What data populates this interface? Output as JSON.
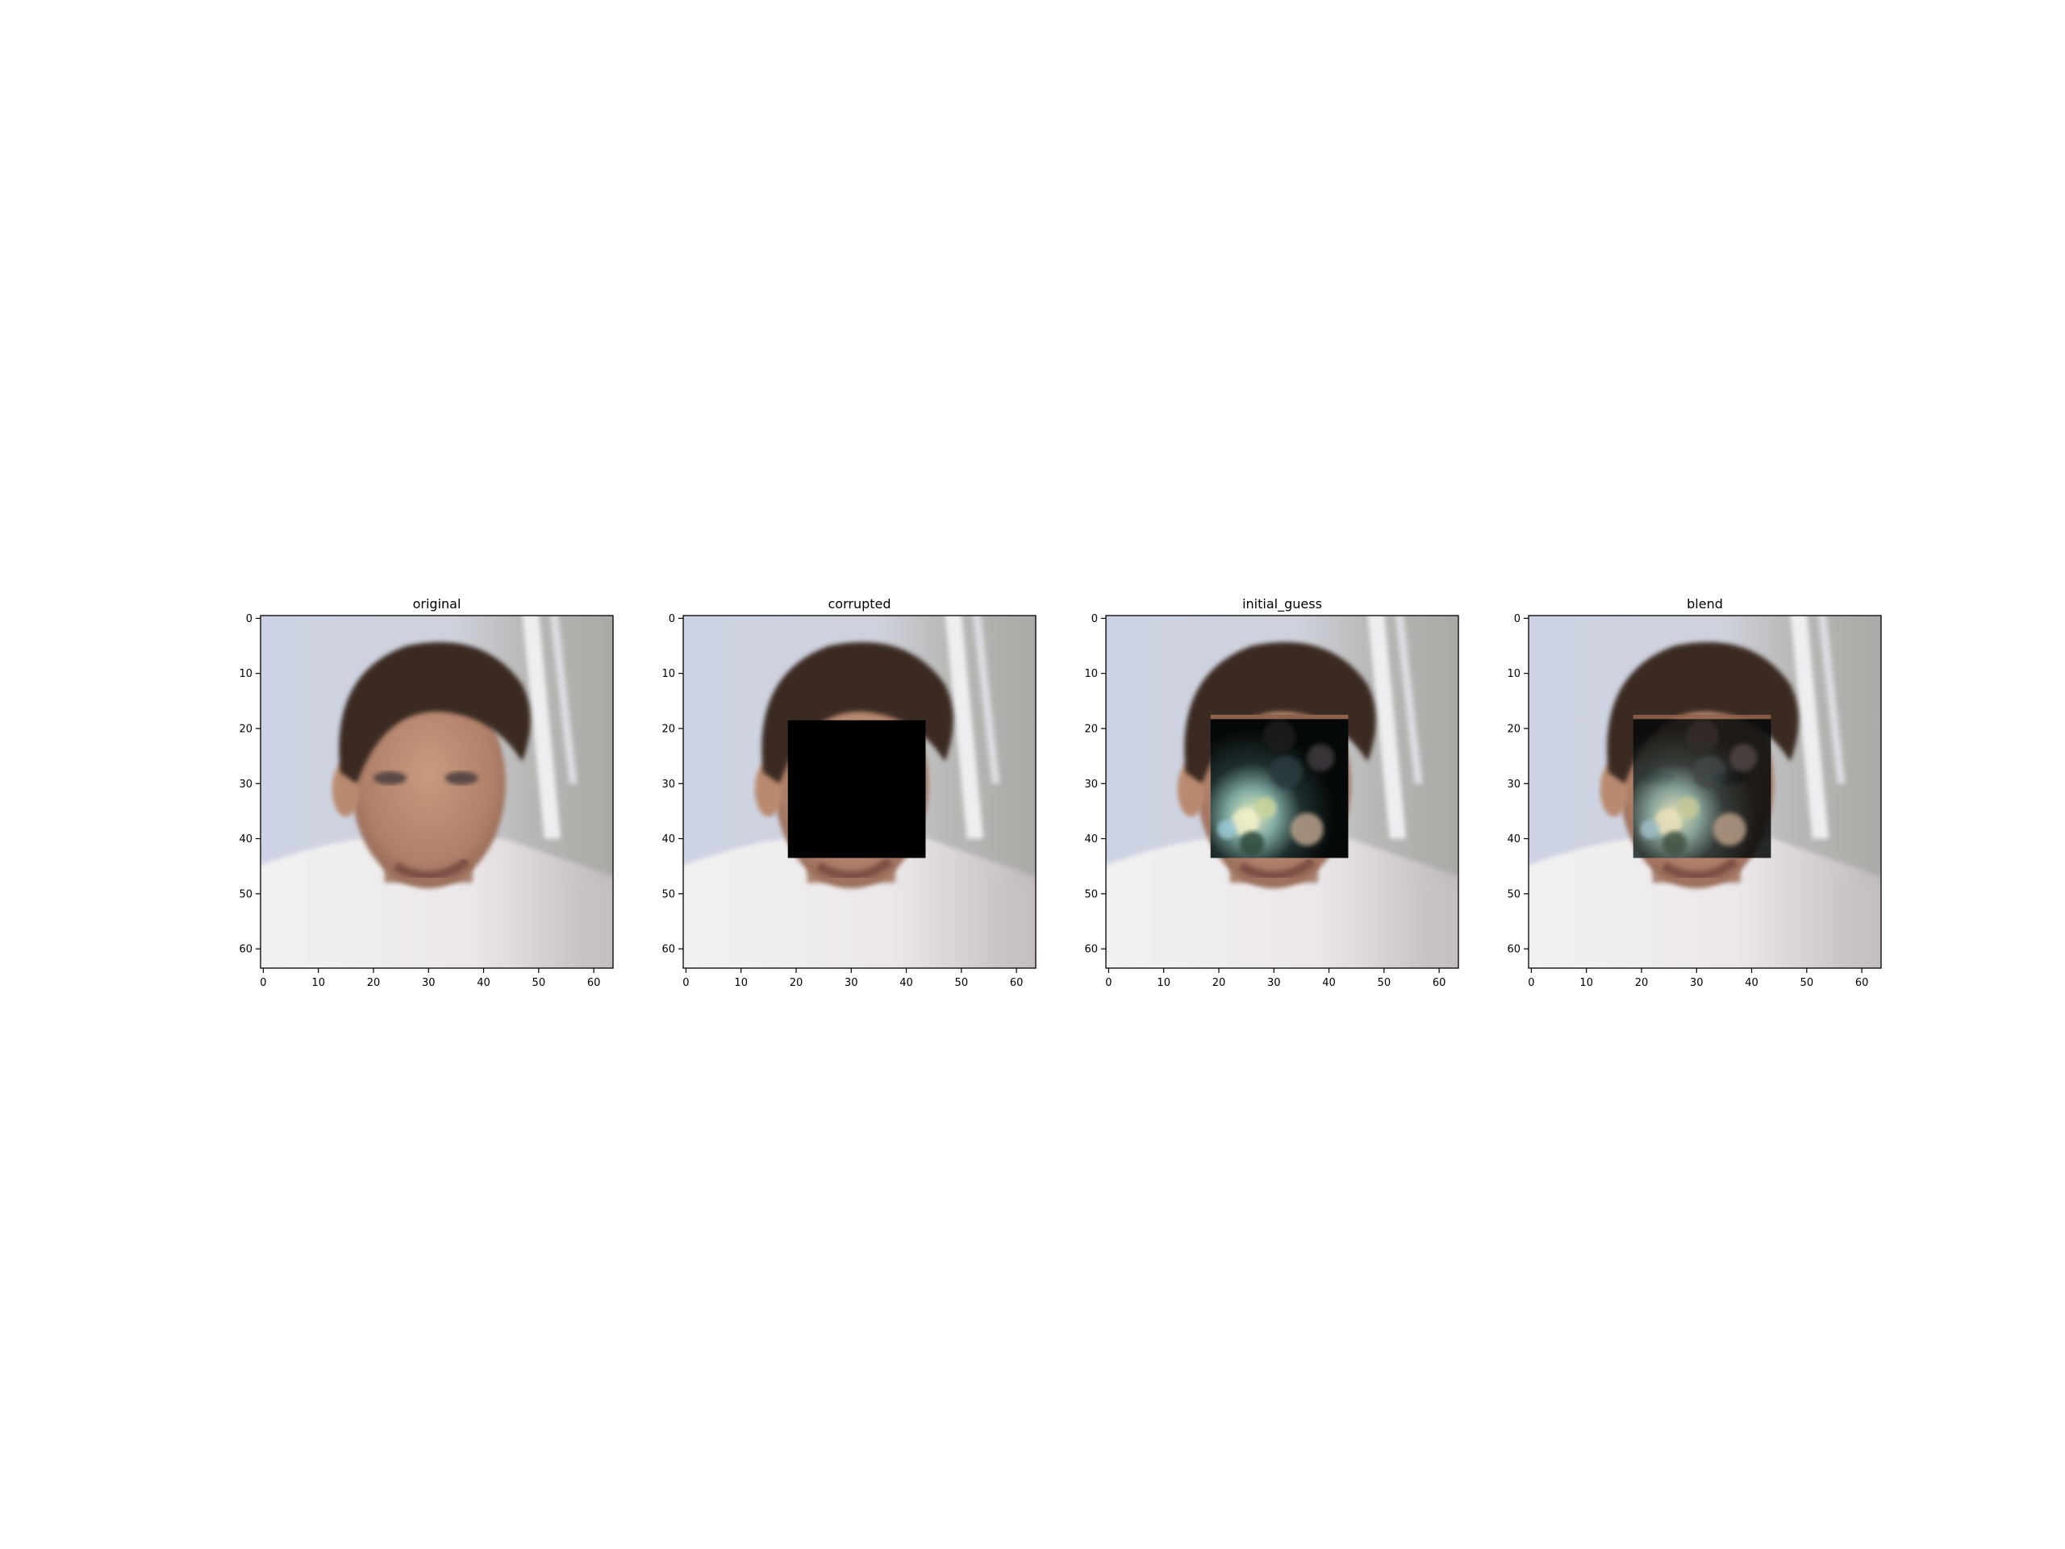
{
  "chart_data": [
    {
      "type": "image",
      "title": "original",
      "xlabel": "",
      "ylabel": "",
      "xlim": [
        0,
        63
      ],
      "ylim": [
        63,
        0
      ],
      "xticks": [
        "0",
        "10",
        "20",
        "30",
        "40",
        "50",
        "60"
      ],
      "yticks": [
        "0",
        "10",
        "20",
        "30",
        "40",
        "50",
        "60"
      ],
      "mask": null,
      "mask_style": "none"
    },
    {
      "type": "image",
      "title": "corrupted",
      "xlabel": "",
      "ylabel": "",
      "xlim": [
        0,
        63
      ],
      "ylim": [
        63,
        0
      ],
      "xticks": [
        "0",
        "10",
        "20",
        "30",
        "40",
        "50",
        "60"
      ],
      "yticks": [
        "0",
        "10",
        "20",
        "30",
        "40",
        "50",
        "60"
      ],
      "mask": {
        "x0": 19,
        "x1": 43,
        "y0": 19,
        "y1": 43
      },
      "mask_style": "black"
    },
    {
      "type": "image",
      "title": "initial_guess",
      "xlabel": "",
      "ylabel": "",
      "xlim": [
        0,
        63
      ],
      "ylim": [
        63,
        0
      ],
      "xticks": [
        "0",
        "10",
        "20",
        "30",
        "40",
        "50",
        "60"
      ],
      "yticks": [
        "0",
        "10",
        "20",
        "30",
        "40",
        "50",
        "60"
      ],
      "mask": {
        "x0": 19,
        "x1": 43,
        "y0": 18,
        "y1": 43
      },
      "mask_style": "noise"
    },
    {
      "type": "image",
      "title": "blend",
      "xlabel": "",
      "ylabel": "",
      "xlim": [
        0,
        63
      ],
      "ylim": [
        63,
        0
      ],
      "xticks": [
        "0",
        "10",
        "20",
        "30",
        "40",
        "50",
        "60"
      ],
      "yticks": [
        "0",
        "10",
        "20",
        "30",
        "40",
        "50",
        "60"
      ],
      "mask": {
        "x0": 19,
        "x1": 43,
        "y0": 18,
        "y1": 43
      },
      "mask_style": "blend"
    }
  ],
  "colors": {
    "background": "#ffffff",
    "axis": "#000000",
    "photo_bg": "#c9cfdf",
    "wall": "#b5b5b3",
    "window": "#eeeef0",
    "skin": "#b98a6f",
    "hair": "#3a2a22",
    "shirt": "#f1eff0",
    "shirt_shadow": "#c9c3c5",
    "mask_black": "#000000"
  }
}
